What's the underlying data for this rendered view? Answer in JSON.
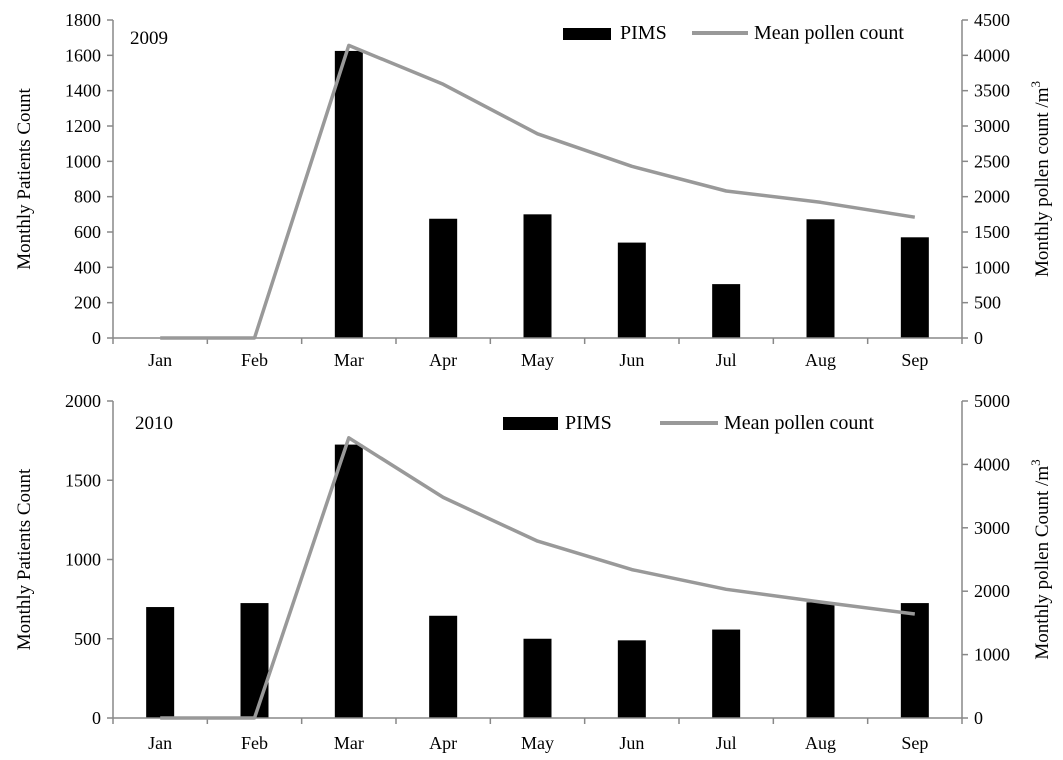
{
  "chart_data": [
    {
      "type": "bar",
      "panel_label": "2009",
      "categories": [
        "Jan",
        "Feb",
        "Mar",
        "Apr",
        "May",
        "Jun",
        "Jul",
        "Aug",
        "Sep"
      ],
      "series": [
        {
          "name": "PIMS",
          "type": "bar",
          "axis": "left",
          "color": "#000000",
          "values": [
            0,
            0,
            1625,
            675,
            700,
            540,
            305,
            672,
            570
          ]
        },
        {
          "name": "Mean pollen count",
          "type": "line",
          "axis": "right",
          "color": "#999999",
          "values": [
            0,
            0,
            4140,
            3590,
            2890,
            2430,
            2080,
            1920,
            1710
          ]
        }
      ],
      "ylabel": "Monthly Patients Count",
      "ylabel2_base": "Monthly pollen count /m",
      "ylabel2_sup": "3",
      "ylim": [
        0,
        1800
      ],
      "yticks": [
        0,
        200,
        400,
        600,
        800,
        1000,
        1200,
        1400,
        1600,
        1800
      ],
      "ylim2": [
        0,
        4500
      ],
      "yticks2": [
        0,
        500,
        1000,
        1500,
        2000,
        2500,
        3000,
        3500,
        4000,
        4500
      ],
      "legend": "top-right",
      "grid": false
    },
    {
      "type": "bar",
      "panel_label": "2010",
      "categories": [
        "Jan",
        "Feb",
        "Mar",
        "Apr",
        "May",
        "Jun",
        "Jul",
        "Aug",
        "Sep"
      ],
      "series": [
        {
          "name": "PIMS",
          "type": "bar",
          "axis": "left",
          "color": "#000000",
          "values": [
            700,
            725,
            1725,
            645,
            500,
            490,
            558,
            730,
            725
          ]
        },
        {
          "name": "Mean pollen count",
          "type": "line",
          "axis": "right",
          "color": "#999999",
          "values": [
            0,
            0,
            4420,
            3480,
            2790,
            2340,
            2030,
            1830,
            1640
          ]
        }
      ],
      "ylabel": "Monthly Patients Count",
      "ylabel2_base": "Monthly pollen Count /m",
      "ylabel2_sup": "3",
      "ylim": [
        0,
        2000
      ],
      "yticks": [
        0,
        500,
        1000,
        1500,
        2000
      ],
      "ylim2": [
        0,
        5000
      ],
      "yticks2": [
        0,
        1000,
        2000,
        3000,
        4000,
        5000
      ],
      "legend": "top-right",
      "grid": false
    }
  ]
}
